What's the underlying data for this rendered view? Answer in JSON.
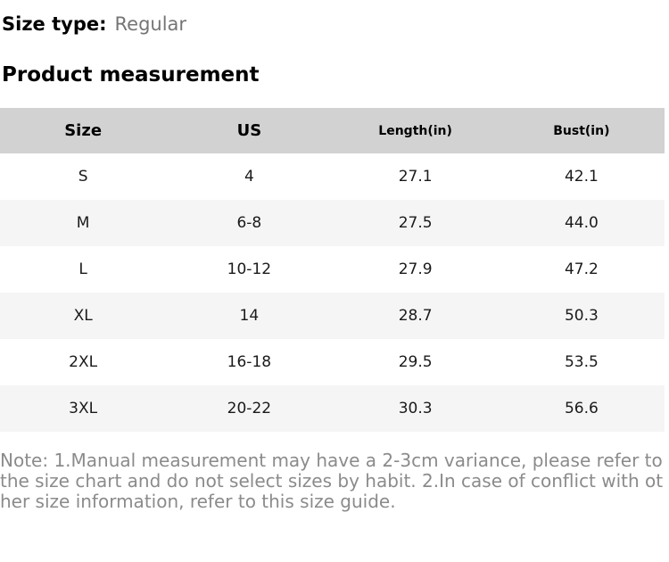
{
  "size_type": {
    "label": "Size type:",
    "value": "Regular"
  },
  "section_title": "Product measurement",
  "table": {
    "headers": [
      "Size",
      "US",
      "Length(in)",
      "Bust(in)"
    ],
    "rows": [
      [
        "S",
        "4",
        "27.1",
        "42.1"
      ],
      [
        "M",
        "6-8",
        "27.5",
        "44.0"
      ],
      [
        "L",
        "10-12",
        "27.9",
        "47.2"
      ],
      [
        "XL",
        "14",
        "28.7",
        "50.3"
      ],
      [
        "2XL",
        "16-18",
        "29.5",
        "53.5"
      ],
      [
        "3XL",
        "20-22",
        "30.3",
        "56.6"
      ]
    ]
  },
  "note": "Note: 1.Manual measurement may have a 2-3cm variance, please refer to the size chart and do not select sizes by habit. 2.In case of conflict with other size information, refer to this size guide.",
  "colors": {
    "header_bg": "#d2d2d2",
    "stripe_bg": "#f5f5f5",
    "note_text": "#8b8b8b",
    "muted_text": "#757575"
  }
}
